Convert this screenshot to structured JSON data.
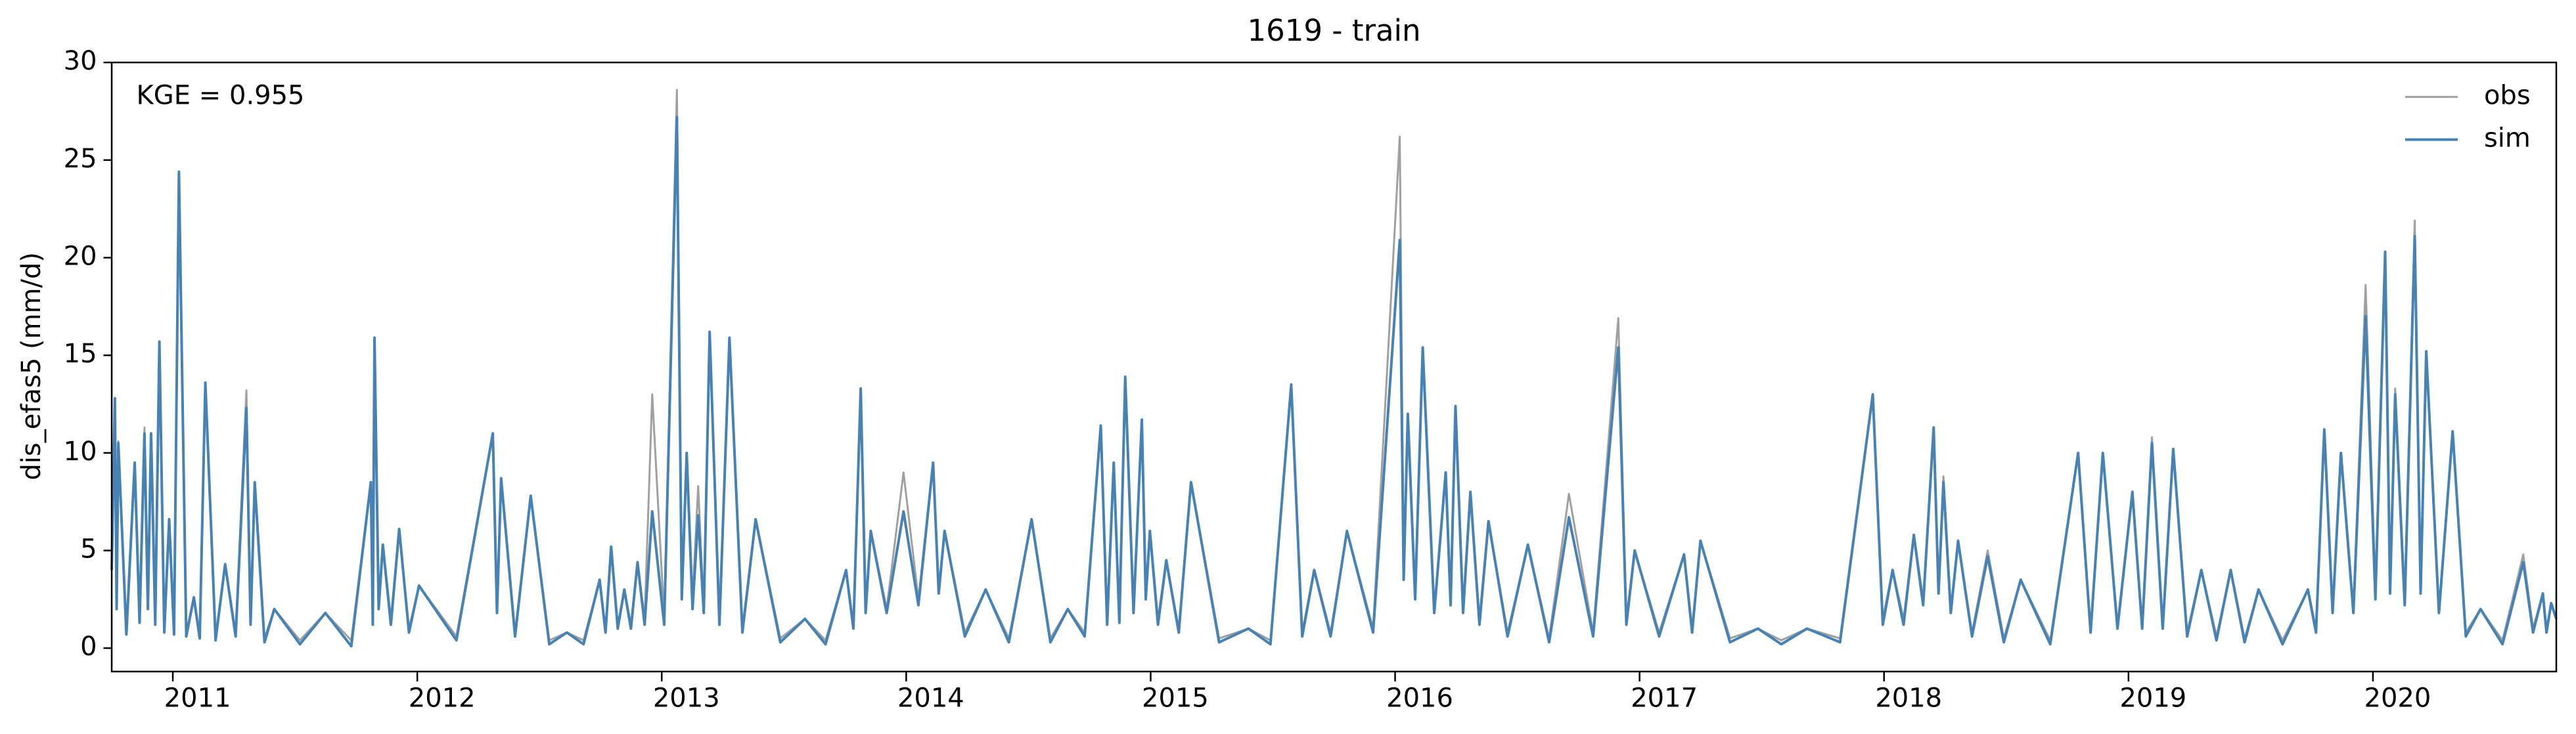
{
  "chart_data": {
    "type": "line",
    "title": "1619 - train",
    "ylabel": "dis_efas5 (mm/d)",
    "annotation": "KGE = 0.955",
    "legend": "upper right",
    "xlim": [
      2010.75,
      2020.75
    ],
    "xticks": [
      2011,
      2012,
      2013,
      2014,
      2015,
      2016,
      2017,
      2018,
      2019,
      2020
    ],
    "ylim": [
      -1.2,
      30
    ],
    "yticks": [
      0,
      5,
      10,
      15,
      20,
      25,
      30
    ],
    "x": [
      2010.75,
      2010.763,
      2010.77,
      2010.777,
      2010.81,
      2010.844,
      2010.864,
      2010.884,
      2010.898,
      2010.911,
      2010.928,
      2010.945,
      2010.965,
      2010.985,
      2011.005,
      2011.025,
      2011.055,
      2011.086,
      2011.11,
      2011.133,
      2011.175,
      2011.214,
      2011.257,
      2011.301,
      2011.318,
      2011.335,
      2011.375,
      2011.415,
      2011.52,
      2011.624,
      2011.73,
      2011.81,
      2011.818,
      2011.825,
      2011.842,
      2011.859,
      2011.892,
      2011.926,
      2011.966,
      2012.007,
      2012.16,
      2012.309,
      2012.326,
      2012.343,
      2012.4,
      2012.464,
      2012.54,
      2012.612,
      2012.68,
      2012.746,
      2012.77,
      2012.793,
      2012.82,
      2012.847,
      2012.874,
      2012.901,
      2012.93,
      2012.961,
      2013.01,
      2013.062,
      2013.082,
      2013.102,
      2013.126,
      2013.149,
      2013.172,
      2013.196,
      2013.236,
      2013.277,
      2013.33,
      2013.384,
      2013.485,
      2013.586,
      2013.67,
      2013.754,
      2013.784,
      2013.814,
      2013.834,
      2013.855,
      2013.92,
      2013.989,
      2014.05,
      2014.11,
      2014.133,
      2014.157,
      2014.24,
      2014.325,
      2014.42,
      2014.513,
      2014.59,
      2014.661,
      2014.73,
      2014.796,
      2014.822,
      2014.849,
      2014.872,
      2014.896,
      2014.93,
      2014.964,
      2014.98,
      2014.997,
      2015.03,
      2015.064,
      2015.115,
      2015.165,
      2015.28,
      2015.4,
      2015.49,
      2015.575,
      2015.62,
      2015.669,
      2015.736,
      2015.803,
      2015.91,
      2016.019,
      2016.035,
      2016.052,
      2016.082,
      2016.113,
      2016.16,
      2016.207,
      2016.227,
      2016.247,
      2016.278,
      2016.308,
      2016.345,
      2016.382,
      2016.46,
      2016.543,
      2016.63,
      2016.711,
      2016.81,
      2016.913,
      2016.946,
      2016.98,
      2017.08,
      2017.182,
      2017.215,
      2017.249,
      2017.37,
      2017.484,
      2017.58,
      2017.685,
      2017.82,
      2017.954,
      2017.995,
      2018.035,
      2018.08,
      2018.122,
      2018.16,
      2018.203,
      2018.223,
      2018.243,
      2018.273,
      2018.303,
      2018.36,
      2018.424,
      2018.49,
      2018.559,
      2018.68,
      2018.794,
      2018.845,
      2018.895,
      2018.955,
      2019.016,
      2019.056,
      2019.096,
      2019.14,
      2019.183,
      2019.24,
      2019.298,
      2019.36,
      2019.418,
      2019.475,
      2019.532,
      2019.63,
      2019.734,
      2019.767,
      2019.801,
      2019.835,
      2019.869,
      2019.92,
      2019.97,
      2020.01,
      2020.05,
      2020.07,
      2020.091,
      2020.13,
      2020.171,
      2020.195,
      2020.218,
      2020.27,
      2020.326,
      2020.38,
      2020.44,
      2020.53,
      2020.615,
      2020.655,
      2020.695,
      2020.71,
      2020.729,
      2020.75
    ],
    "series": [
      {
        "name": "obs",
        "color": "#a0a0a0",
        "values": [
          4,
          12.8,
          2,
          10.6,
          0.8,
          9.5,
          1.5,
          11.3,
          2,
          11,
          1.5,
          15.7,
          1,
          6.6,
          0.9,
          24.4,
          0.8,
          2.6,
          0.7,
          13.6,
          0.6,
          4.3,
          0.8,
          13.2,
          1.5,
          8.5,
          0.5,
          2.0,
          0.4,
          1.8,
          0.4,
          8.5,
          1.5,
          15.9,
          2.5,
          5.3,
          1.5,
          6.1,
          1,
          3.2,
          0.6,
          11.0,
          2,
          8.7,
          0.8,
          7.8,
          0.4,
          0.8,
          0.4,
          3.5,
          1,
          5.2,
          1.2,
          3,
          1.2,
          4.4,
          1.5,
          13,
          1.5,
          28.6,
          3,
          10,
          2.5,
          8.3,
          2,
          16.2,
          1.5,
          15.9,
          1,
          6.6,
          0.5,
          1.5,
          0.4,
          4,
          1.2,
          13.3,
          2,
          6,
          2,
          9,
          2.5,
          9.5,
          3,
          6,
          0.8,
          3,
          0.5,
          6.6,
          0.5,
          2,
          0.8,
          11.4,
          1.5,
          9.5,
          1.5,
          13.9,
          2,
          11.7,
          3,
          6,
          1.5,
          4.5,
          1,
          8.5,
          0.5,
          1,
          0.4,
          13.5,
          0.8,
          4,
          0.8,
          6,
          1,
          26.2,
          4,
          12,
          3,
          15.4,
          2,
          9,
          2.5,
          12.4,
          2,
          8,
          1.5,
          6.5,
          0.8,
          5.3,
          0.5,
          7.9,
          0.8,
          16.9,
          1.5,
          5,
          0.8,
          4.8,
          1,
          5.5,
          0.5,
          1,
          0.4,
          1,
          0.5,
          13,
          1.5,
          4,
          1.5,
          5.8,
          2.5,
          11.3,
          3,
          8.8,
          2,
          5.5,
          0.8,
          5,
          0.5,
          3.5,
          0.4,
          10,
          1,
          10,
          1.2,
          8,
          1.2,
          10.8,
          1.2,
          10.2,
          0.8,
          4,
          0.6,
          4,
          0.5,
          3,
          0.4,
          3,
          1,
          11.2,
          2,
          10,
          2,
          18.6,
          3,
          20.3,
          3,
          13.3,
          2.5,
          21.9,
          3,
          15.2,
          2,
          11.1,
          0.8,
          2,
          0.4,
          4.8,
          1,
          2.8,
          1,
          2.3,
          1.5
        ]
      },
      {
        "name": "sim",
        "color": "#4682b4",
        "values": [
          4,
          12.8,
          2,
          10.5,
          0.7,
          9.5,
          1.3,
          11,
          2,
          11,
          1.2,
          15.7,
          0.8,
          6.6,
          0.7,
          24.4,
          0.6,
          2.6,
          0.5,
          13.6,
          0.4,
          4.3,
          0.6,
          12.3,
          1.2,
          8.5,
          0.3,
          2.0,
          0.2,
          1.8,
          0.1,
          8.5,
          1.2,
          15.9,
          2,
          5.3,
          1.2,
          6.1,
          0.8,
          3.2,
          0.4,
          11.0,
          1.8,
          8.7,
          0.6,
          7.8,
          0.2,
          0.8,
          0.2,
          3.5,
          0.8,
          5.2,
          1,
          3,
          1,
          4.4,
          1.2,
          7,
          1.2,
          27.2,
          2.5,
          10,
          2,
          6.8,
          1.8,
          16.2,
          1.2,
          15.9,
          0.8,
          6.6,
          0.3,
          1.5,
          0.2,
          4,
          1,
          13.3,
          1.8,
          6,
          1.8,
          7,
          2.2,
          9.5,
          2.8,
          6,
          0.6,
          3,
          0.3,
          6.6,
          0.3,
          2,
          0.6,
          11.4,
          1.2,
          9.5,
          1.3,
          13.9,
          1.8,
          11.7,
          2.5,
          6,
          1.2,
          4.5,
          0.8,
          8.5,
          0.3,
          1,
          0.2,
          13.5,
          0.6,
          4,
          0.6,
          6,
          0.8,
          20.9,
          3.5,
          12,
          2.5,
          15.4,
          1.8,
          9,
          2.2,
          12.4,
          1.8,
          8,
          1.2,
          6.5,
          0.6,
          5.3,
          0.3,
          6.7,
          0.6,
          15.4,
          1.2,
          5,
          0.6,
          4.8,
          0.8,
          5.5,
          0.3,
          1,
          0.2,
          1,
          0.3,
          13,
          1.2,
          4,
          1.2,
          5.8,
          2.2,
          11.3,
          2.8,
          8.5,
          1.8,
          5.5,
          0.6,
          4.7,
          0.3,
          3.5,
          0.2,
          10,
          0.8,
          10,
          1,
          8,
          1,
          10.5,
          1,
          10.2,
          0.6,
          4,
          0.4,
          4,
          0.3,
          3,
          0.2,
          3,
          0.8,
          11.2,
          1.8,
          10,
          1.8,
          17,
          2.5,
          20.3,
          2.8,
          13,
          2.2,
          21.1,
          2.8,
          15.2,
          1.8,
          11.1,
          0.6,
          2,
          0.2,
          4.4,
          0.8,
          2.8,
          0.8,
          2.3,
          1.5
        ]
      }
    ]
  }
}
